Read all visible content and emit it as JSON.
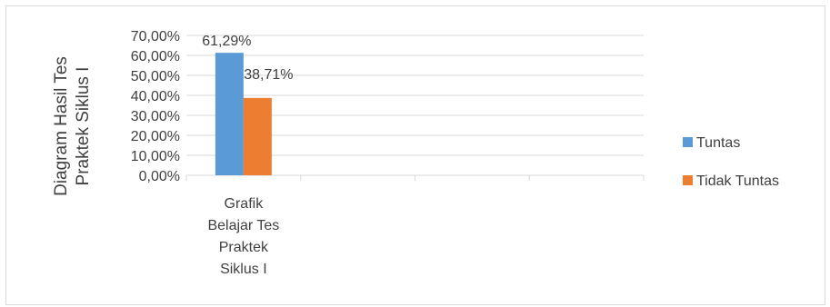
{
  "chart_data": {
    "type": "bar",
    "categories": [
      "Grafik Belajar Tes Praktek Siklus I",
      "",
      "",
      ""
    ],
    "category_label_lines": [
      [
        "Grafik",
        "Belajar Tes",
        "Praktek",
        "Siklus I"
      ]
    ],
    "series": [
      {
        "name": "Tuntas",
        "values": [
          61.29,
          null,
          null,
          null
        ],
        "labels": [
          "61,29%"
        ],
        "color": "#5b9bd5"
      },
      {
        "name": "Tidak  Tuntas",
        "values": [
          38.71,
          null,
          null,
          null
        ],
        "labels": [
          "38,71%"
        ],
        "color": "#ed7d31"
      }
    ],
    "ylabel_lines": [
      "Diagram Hasil Tes",
      "Praktek Siklus I"
    ],
    "xlabel": "",
    "title": "",
    "ylim": [
      0,
      70
    ],
    "yticks": [
      0,
      10,
      20,
      30,
      40,
      50,
      60,
      70
    ],
    "ytick_labels": [
      "0,00%",
      "10,00%",
      "20,00%",
      "30,00%",
      "40,00%",
      "50,00%",
      "60,00%",
      "70,00%"
    ],
    "grid": true,
    "legend_position": "right",
    "gridline_color": "#d9d9d9",
    "text_color": "#404040"
  }
}
